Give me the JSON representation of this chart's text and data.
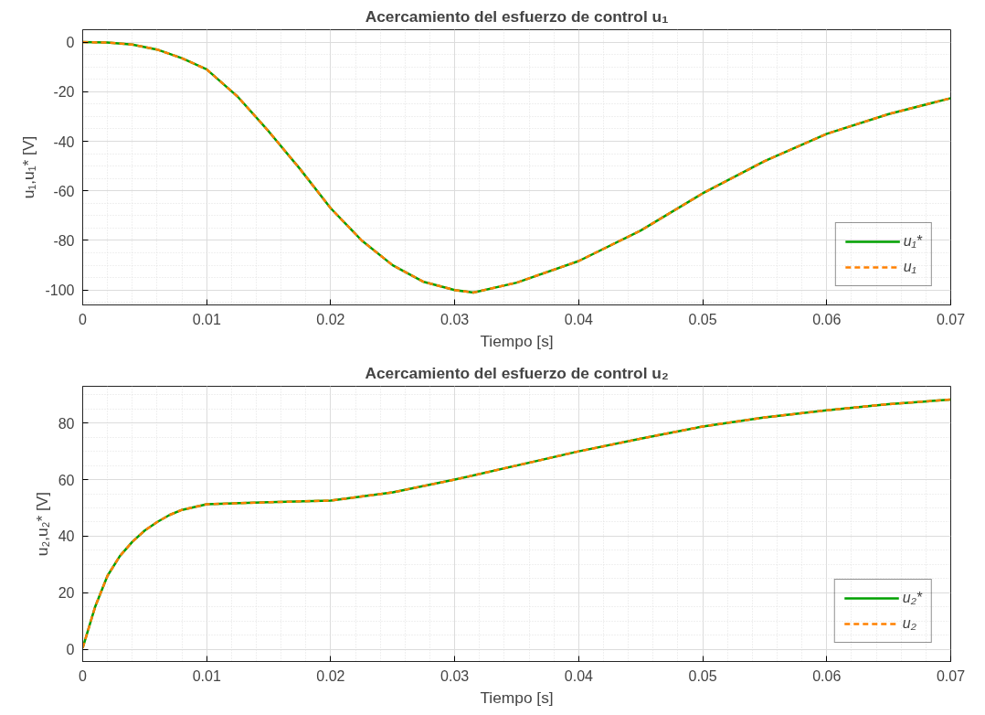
{
  "chart_data": [
    {
      "type": "line",
      "title": "Acercamiento del esfuerzo de control u₁",
      "xlabel": "Tiempo [s]",
      "ylabel": "u₁,u₁* [V]",
      "x": [
        0,
        0.002,
        0.004,
        0.006,
        0.008,
        0.01,
        0.0125,
        0.015,
        0.0175,
        0.02,
        0.0225,
        0.025,
        0.0275,
        0.03,
        0.0315,
        0.035,
        0.04,
        0.045,
        0.05,
        0.055,
        0.06,
        0.065,
        0.07
      ],
      "series": [
        {
          "name": "u₁*",
          "color": "#00a000",
          "line_style": "solid",
          "values": [
            0,
            -0.2,
            -1,
            -3,
            -6.5,
            -11,
            -22,
            -36,
            -51,
            -67,
            -80,
            -90,
            -96.7,
            -100,
            -101,
            -97,
            -88.3,
            -76,
            -61,
            -48,
            -37,
            -29,
            -22.6
          ]
        },
        {
          "name": "u₁",
          "color": "#ff8000",
          "line_style": "dashed",
          "values": [
            0,
            -0.2,
            -1,
            -3,
            -6.5,
            -11,
            -22,
            -36,
            -51,
            -67,
            -80,
            -90,
            -96.7,
            -100,
            -101,
            -97,
            -88.3,
            -76,
            -61,
            -48,
            -37,
            -29,
            -22.6
          ]
        }
      ],
      "xlim": [
        0,
        0.07
      ],
      "xticks": [
        0,
        0.01,
        0.02,
        0.03,
        0.04,
        0.05,
        0.06,
        0.07
      ],
      "ylim": [
        -106,
        5
      ],
      "yticks": [
        -100,
        -80,
        -60,
        -40,
        -20,
        0
      ],
      "grid": true,
      "legend": "bottom right"
    },
    {
      "type": "line",
      "title": "Acercamiento del esfuerzo de control u₂",
      "xlabel": "Tiempo [s]",
      "ylabel": "u₂,u₂* [V]",
      "x": [
        0,
        0.001,
        0.002,
        0.003,
        0.004,
        0.005,
        0.006,
        0.007,
        0.008,
        0.01,
        0.015,
        0.02,
        0.025,
        0.03,
        0.035,
        0.04,
        0.045,
        0.05,
        0.055,
        0.06,
        0.065,
        0.07
      ],
      "series": [
        {
          "name": "u₂*",
          "color": "#00a000",
          "line_style": "solid",
          "values": [
            0.5,
            15,
            26,
            33,
            38,
            42,
            45,
            47.5,
            49.3,
            51.3,
            52,
            52.6,
            55.5,
            60,
            65,
            70,
            74.5,
            78.8,
            82,
            84.5,
            86.7,
            88.3
          ]
        },
        {
          "name": "u₂",
          "color": "#ff8000",
          "line_style": "dashed",
          "values": [
            0.5,
            15,
            26,
            33,
            38,
            42,
            45,
            47.5,
            49.3,
            51.3,
            52,
            52.6,
            55.5,
            60,
            65,
            70,
            74.5,
            78.8,
            82,
            84.5,
            86.7,
            88.3
          ]
        }
      ],
      "xlim": [
        0,
        0.07
      ],
      "xticks": [
        0,
        0.01,
        0.02,
        0.03,
        0.04,
        0.05,
        0.06,
        0.07
      ],
      "ylim": [
        -4.3,
        93
      ],
      "yticks": [
        0,
        20,
        40,
        60,
        80
      ],
      "grid": true,
      "legend": "bottom right"
    }
  ]
}
